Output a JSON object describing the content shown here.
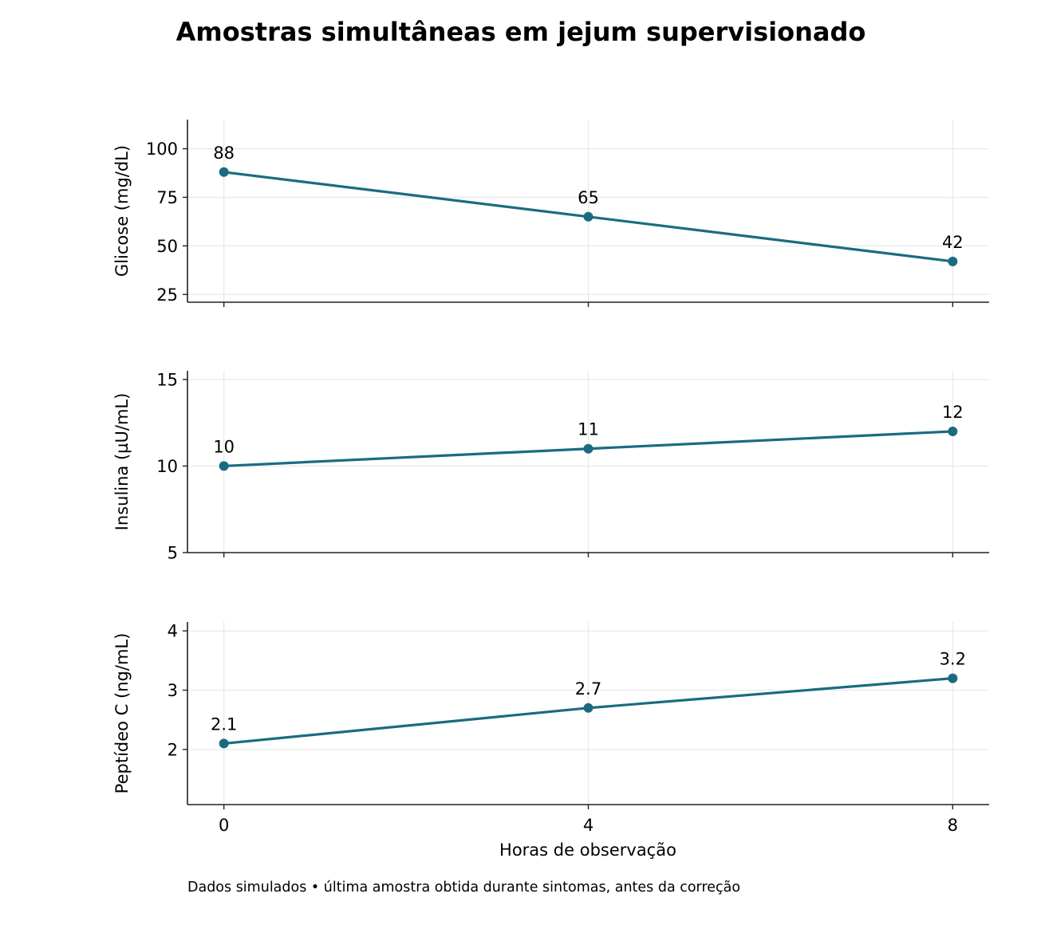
{
  "chart_data": {
    "type": "line",
    "title": "Amostras simultâneas em jejum supervisionado",
    "xlabel": "Horas de observação",
    "x": [
      0,
      4,
      8
    ],
    "xlim": [
      -0.4,
      8.4
    ],
    "xticks": [
      0,
      4,
      8
    ],
    "grid": true,
    "line_color": "#1b6b80",
    "footnote": "Dados simulados • última amostra obtida durante sintomas, antes da correção",
    "panels": [
      {
        "ylabel": "Glicose (mg/dL)",
        "ylim": [
          21,
          115
        ],
        "yticks": [
          25,
          50,
          75,
          100
        ],
        "values": [
          88,
          65,
          42
        ],
        "labels": [
          "88",
          "65",
          "42"
        ]
      },
      {
        "ylabel": "Insulina (µU/mL)",
        "ylim": [
          5,
          15.5
        ],
        "yticks": [
          5,
          10,
          15
        ],
        "values": [
          10,
          11,
          12
        ],
        "labels": [
          "10",
          "11",
          "12"
        ]
      },
      {
        "ylabel": "Peptídeo C (ng/mL)",
        "ylim": [
          1.07,
          4.15
        ],
        "yticks": [
          2,
          3,
          4
        ],
        "values": [
          2.1,
          2.7,
          3.2
        ],
        "labels": [
          "2.1",
          "2.7",
          "3.2"
        ]
      }
    ]
  }
}
